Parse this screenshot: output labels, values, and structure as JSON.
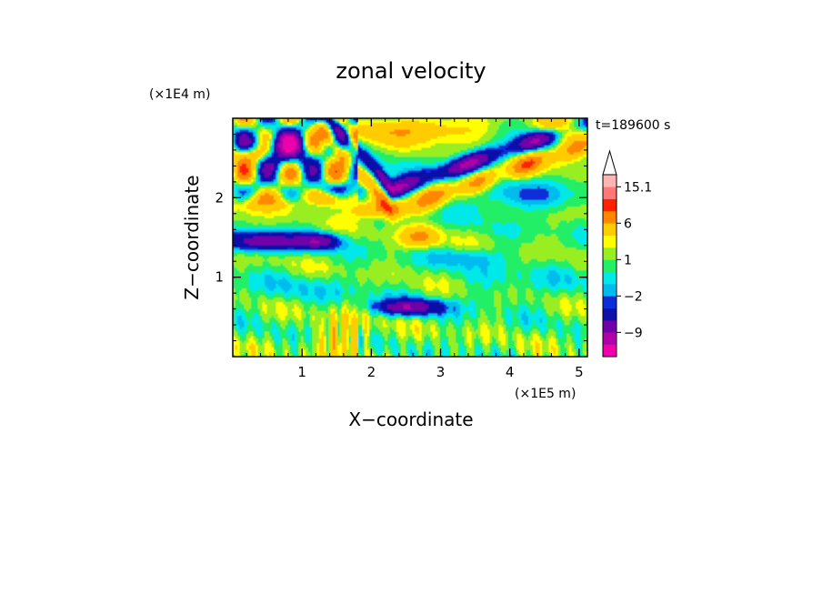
{
  "chart_data": {
    "type": "heatmap",
    "title": "zonal velocity",
    "time_label": "t=189600 s",
    "xlabel": "X−coordinate",
    "ylabel": "Z−coordinate",
    "x_scale_label": "(×1E5 m)",
    "y_scale_label": "(×1E4 m)",
    "xlim": [
      0,
      5.12
    ],
    "ylim": [
      0,
      3.0
    ],
    "x_ticks": [
      {
        "value": 1,
        "label": "1"
      },
      {
        "value": 2,
        "label": "2"
      },
      {
        "value": 3,
        "label": "3"
      },
      {
        "value": 4,
        "label": "4"
      },
      {
        "value": 5,
        "label": "5"
      }
    ],
    "y_ticks": [
      {
        "value": 1,
        "label": "1"
      },
      {
        "value": 2,
        "label": "2"
      }
    ],
    "colorbar": {
      "extend_max": true,
      "levels": [
        -15,
        -12,
        -9,
        -6,
        -3,
        -2,
        -1,
        0,
        1,
        2,
        3,
        6,
        9,
        12,
        15.1
      ],
      "colors": [
        "#ee00aa",
        "#b000a8",
        "#7000a8",
        "#1010aa",
        "#0a2ed8",
        "#00bbee",
        "#00e8e8",
        "#22ee66",
        "#99ee22",
        "#ffff00",
        "#ffcc00",
        "#ff8800",
        "#ff2200",
        "#ff7777",
        "#ffb4b4"
      ],
      "top_color": "#ffffff",
      "tick_labels": [
        {
          "value": 15.1,
          "label": "15.1"
        },
        {
          "value": 6,
          "label": "6"
        },
        {
          "value": 1,
          "label": "1"
        },
        {
          "value": -2,
          "label": "−2"
        },
        {
          "value": -9,
          "label": "−9"
        }
      ]
    },
    "field_description": [
      "mostly yellow/green (0 to 2) in lower region",
      "blue band (-6 to -3) descending from x=1.6,z=2.8 to x=2.3,z=2.1 then rising to x=5,z=2.8",
      "orange/red (3 to 9) band just below it",
      "blue patches near x=0.1-0.8, z=1.4 and x=2.2-3.0, z=0.6",
      "cyan region near x=3-5, z=1.9-2.2",
      "orange (3 to 6) pockets near surface x=1.3-2.0"
    ]
  }
}
